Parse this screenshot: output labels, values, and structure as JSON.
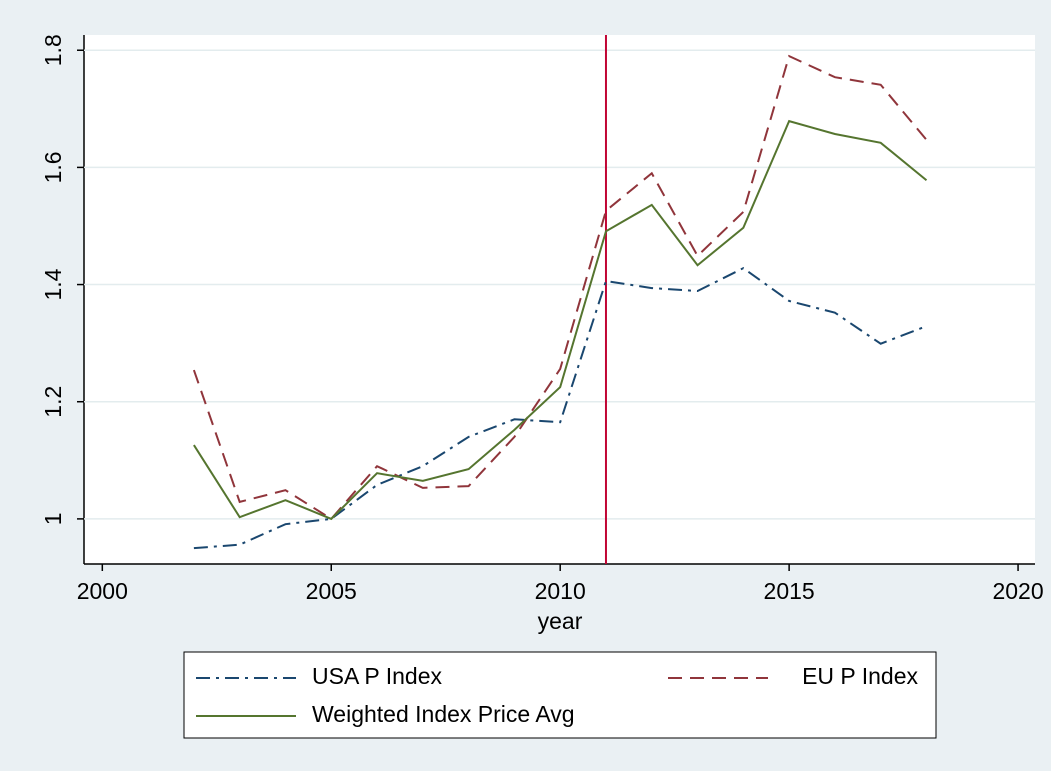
{
  "chart_data": {
    "type": "line",
    "x_label": "year",
    "x": [
      2002,
      2003,
      2004,
      2005,
      2006,
      2007,
      2008,
      2009,
      2010,
      2011,
      2012,
      2013,
      2014,
      2015,
      2016,
      2017,
      2018
    ],
    "series": [
      {
        "name": "USA P Index",
        "color": "#1a476f",
        "dash": "dashdot",
        "values": [
          0.95,
          0.956,
          0.991,
          1.0,
          1.058,
          1.09,
          1.14,
          1.17,
          1.165,
          1.406,
          1.394,
          1.389,
          1.428,
          1.372,
          1.352,
          1.299,
          1.329
        ]
      },
      {
        "name": "EU P Index",
        "color": "#90353b",
        "dash": "dash",
        "values": [
          1.254,
          1.029,
          1.049,
          1.0,
          1.09,
          1.053,
          1.056,
          1.14,
          1.256,
          1.526,
          1.59,
          1.449,
          1.524,
          1.79,
          1.754,
          1.741,
          1.647
        ]
      },
      {
        "name": "Weighted Index Price Avg",
        "color": "#55752f",
        "dash": "solid",
        "values": [
          1.126,
          1.003,
          1.032,
          1.0,
          1.078,
          1.065,
          1.085,
          1.152,
          1.225,
          1.491,
          1.536,
          1.433,
          1.497,
          1.679,
          1.657,
          1.642,
          1.578
        ]
      }
    ],
    "vline": 2011,
    "vline_color": "#c10534",
    "xlim": [
      1999.6,
      2020.37
    ],
    "xticks": [
      2000,
      2005,
      2010,
      2015,
      2020
    ],
    "ylim": [
      0.923,
      1.826
    ],
    "yticks": [
      1,
      1.2,
      1.4,
      1.6,
      1.8
    ],
    "grid": true
  }
}
